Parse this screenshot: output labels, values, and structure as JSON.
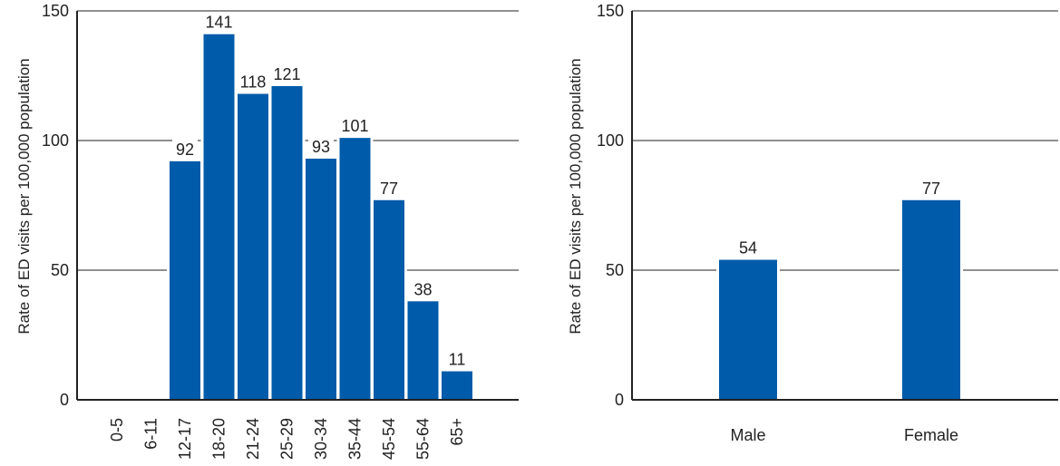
{
  "chart_data": [
    {
      "type": "bar",
      "title": "",
      "xlabel": "",
      "ylabel": "Rate of ED visits per 100,000 population",
      "ylim": [
        0,
        150
      ],
      "yticks": [
        0,
        50,
        100,
        150
      ],
      "grid": true,
      "bar_color": "#005BAA",
      "categories": [
        "0-5",
        "6-11",
        "12-17",
        "18-20",
        "21-24",
        "25-29",
        "30-34",
        "35-44",
        "45-54",
        "55-64",
        "65+"
      ],
      "values": [
        null,
        null,
        92,
        141,
        118,
        121,
        93,
        101,
        77,
        38,
        11
      ],
      "value_labels": [
        "",
        "",
        "92",
        "141",
        "118",
        "121",
        "93",
        "101",
        "77",
        "38",
        "11"
      ],
      "tick_labels": [
        "0-5",
        "6-11",
        "12-17",
        "18-20",
        "21-24",
        "25-29",
        "30-34",
        "35-44",
        "45-54",
        "55-64",
        "65+"
      ]
    },
    {
      "type": "bar",
      "title": "",
      "xlabel": "",
      "ylabel": "Rate of ED visits per 100,000 population",
      "ylim": [
        0,
        150
      ],
      "yticks": [
        0,
        50,
        100,
        150
      ],
      "grid": true,
      "bar_color": "#005BAA",
      "categories": [
        "Male",
        "Female"
      ],
      "values": [
        54,
        77
      ],
      "value_labels": [
        "54",
        "77"
      ],
      "tick_labels": [
        "Male",
        "Female"
      ]
    }
  ]
}
